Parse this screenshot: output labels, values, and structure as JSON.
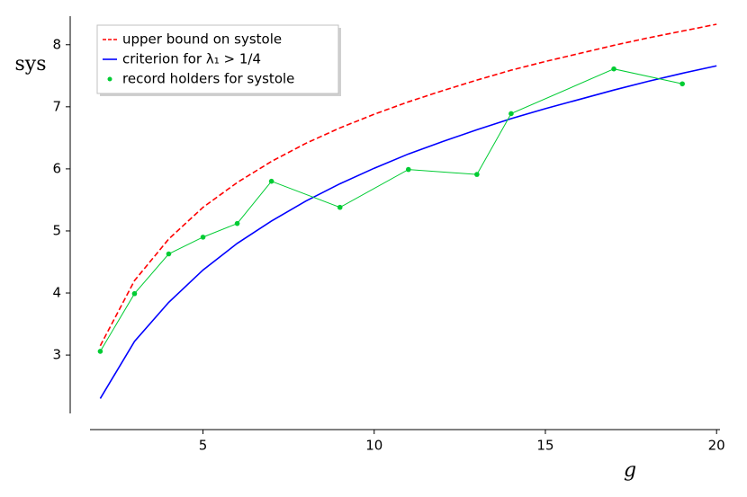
{
  "chart_data": {
    "type": "line",
    "x_label": "g",
    "y_label": "sys",
    "xlim": [
      1.7,
      20.1
    ],
    "ylim": [
      2.06,
      8.46
    ],
    "xticks": [
      5,
      10,
      15,
      20
    ],
    "yticks": [
      3,
      4,
      5,
      6,
      7,
      8
    ],
    "grid": false,
    "legend": "upper left",
    "series": [
      {
        "name": "upper bound on systole",
        "color": "#ff0000",
        "style": "dashed",
        "markers": false,
        "x": [
          2,
          3,
          4,
          5,
          6,
          7,
          8,
          9,
          10,
          11,
          12,
          13,
          14,
          15,
          16,
          17,
          18,
          19,
          20
        ],
        "values": [
          3.15,
          4.2,
          4.87,
          5.38,
          5.78,
          6.12,
          6.41,
          6.66,
          6.88,
          7.08,
          7.26,
          7.43,
          7.59,
          7.73,
          7.86,
          7.99,
          8.11,
          8.22,
          8.33
        ]
      },
      {
        "name": "criterion for λ₁ > 1/4",
        "color": "#0000ff",
        "style": "solid",
        "markers": false,
        "x": [
          2,
          3,
          4,
          5,
          6,
          7,
          8,
          9,
          10,
          11,
          12,
          13,
          14,
          15,
          16,
          17,
          18,
          19,
          20
        ],
        "values": [
          2.3,
          3.22,
          3.85,
          4.37,
          4.8,
          5.16,
          5.48,
          5.76,
          6.01,
          6.24,
          6.44,
          6.63,
          6.81,
          6.97,
          7.12,
          7.27,
          7.41,
          7.54,
          7.66
        ]
      },
      {
        "name": "record holders for systole",
        "color": "#00cc33",
        "style": "solid",
        "markers": true,
        "x": [
          2,
          3,
          4,
          5,
          6,
          7,
          9,
          11,
          13,
          14,
          17,
          19
        ],
        "values": [
          3.06,
          3.99,
          4.63,
          4.9,
          5.12,
          5.8,
          5.38,
          5.99,
          5.91,
          6.89,
          7.61,
          7.37
        ]
      }
    ]
  }
}
